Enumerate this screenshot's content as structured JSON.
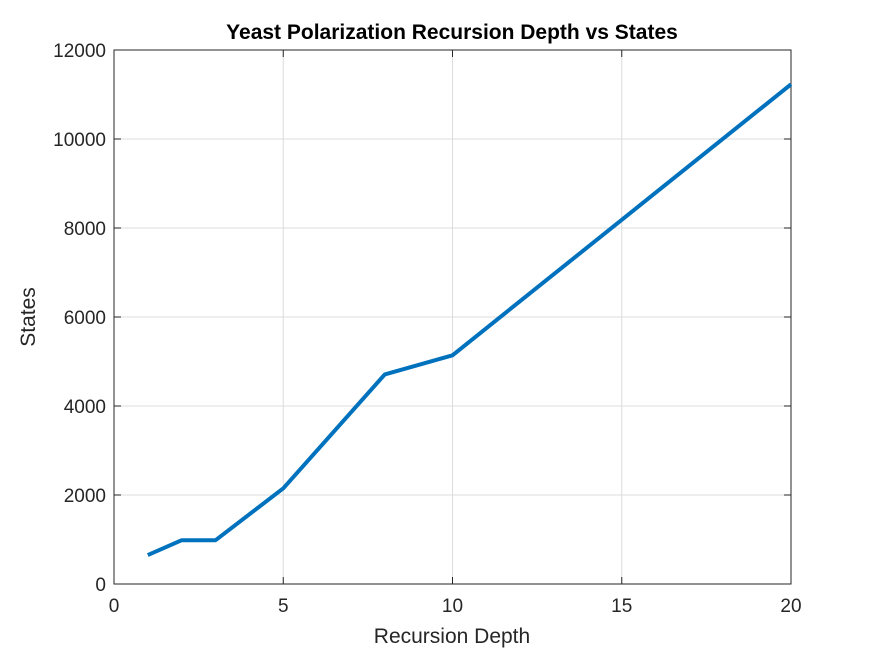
{
  "chart_data": {
    "type": "line",
    "title": "Yeast Polarization Recursion Depth vs States",
    "xlabel": "Recursion Depth",
    "ylabel": "States",
    "xlim": [
      0,
      20
    ],
    "ylim": [
      0,
      12000
    ],
    "xticks": [
      0,
      5,
      10,
      15,
      20
    ],
    "yticks": [
      0,
      2000,
      4000,
      6000,
      8000,
      10000,
      12000
    ],
    "grid": true,
    "series": [
      {
        "name": "States",
        "color": "#0072BD",
        "x": [
          1,
          2,
          3,
          5,
          8,
          10,
          20
        ],
        "y": [
          650,
          985,
          985,
          2150,
          4710,
          5140,
          11230
        ]
      }
    ]
  }
}
